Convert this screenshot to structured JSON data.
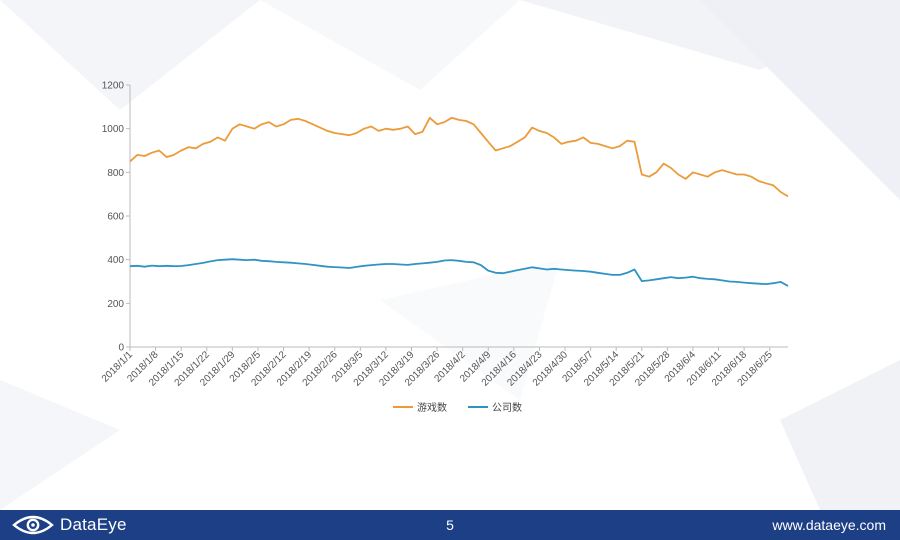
{
  "footer": {
    "brand_name": "DataEye",
    "page_number": "5",
    "website": "www.dataeye.com",
    "bar_color": "#1d3f86"
  },
  "chart_data": {
    "type": "line",
    "title": "",
    "xlabel": "",
    "ylabel": "",
    "ylim": [
      0,
      1200
    ],
    "yticks": [
      0,
      200,
      400,
      600,
      800,
      1000,
      1200
    ],
    "grid": false,
    "legend_position": "bottom",
    "x_start": "2018-01-01",
    "x_end": "2018-06-30",
    "xtick_labels": [
      "2018/1/1",
      "2018/1/8",
      "2018/1/15",
      "2018/1/22",
      "2018/1/29",
      "2018/2/5",
      "2018/2/12",
      "2018/2/19",
      "2018/2/26",
      "2018/3/5",
      "2018/3/12",
      "2018/3/19",
      "2018/3/26",
      "2018/4/2",
      "2018/4/9",
      "2018/4/16",
      "2018/4/23",
      "2018/4/30",
      "2018/5/7",
      "2018/5/14",
      "2018/5/21",
      "2018/5/28",
      "2018/6/4",
      "2018/6/11",
      "2018/6/18",
      "2018/6/25"
    ],
    "series": [
      {
        "name": "游戏数",
        "color": "#ec9b3b",
        "points": [
          [
            "2018-01-01",
            850
          ],
          [
            "2018-01-03",
            880
          ],
          [
            "2018-01-05",
            875
          ],
          [
            "2018-01-07",
            890
          ],
          [
            "2018-01-09",
            900
          ],
          [
            "2018-01-11",
            870
          ],
          [
            "2018-01-13",
            880
          ],
          [
            "2018-01-15",
            900
          ],
          [
            "2018-01-17",
            915
          ],
          [
            "2018-01-19",
            910
          ],
          [
            "2018-01-21",
            930
          ],
          [
            "2018-01-23",
            940
          ],
          [
            "2018-01-25",
            960
          ],
          [
            "2018-01-27",
            945
          ],
          [
            "2018-01-29",
            1000
          ],
          [
            "2018-01-31",
            1020
          ],
          [
            "2018-02-02",
            1010
          ],
          [
            "2018-02-04",
            1000
          ],
          [
            "2018-02-06",
            1020
          ],
          [
            "2018-02-08",
            1030
          ],
          [
            "2018-02-10",
            1010
          ],
          [
            "2018-02-12",
            1020
          ],
          [
            "2018-02-14",
            1040
          ],
          [
            "2018-02-16",
            1045
          ],
          [
            "2018-02-18",
            1035
          ],
          [
            "2018-02-20",
            1020
          ],
          [
            "2018-02-22",
            1005
          ],
          [
            "2018-02-24",
            990
          ],
          [
            "2018-02-26",
            980
          ],
          [
            "2018-02-28",
            975
          ],
          [
            "2018-03-02",
            970
          ],
          [
            "2018-03-04",
            980
          ],
          [
            "2018-03-06",
            1000
          ],
          [
            "2018-03-08",
            1010
          ],
          [
            "2018-03-10",
            990
          ],
          [
            "2018-03-12",
            1000
          ],
          [
            "2018-03-14",
            995
          ],
          [
            "2018-03-16",
            1000
          ],
          [
            "2018-03-18",
            1010
          ],
          [
            "2018-03-20",
            975
          ],
          [
            "2018-03-22",
            985
          ],
          [
            "2018-03-24",
            1050
          ],
          [
            "2018-03-26",
            1020
          ],
          [
            "2018-03-28",
            1030
          ],
          [
            "2018-03-30",
            1050
          ],
          [
            "2018-04-01",
            1040
          ],
          [
            "2018-04-03",
            1035
          ],
          [
            "2018-04-05",
            1020
          ],
          [
            "2018-04-07",
            980
          ],
          [
            "2018-04-09",
            940
          ],
          [
            "2018-04-11",
            900
          ],
          [
            "2018-04-13",
            910
          ],
          [
            "2018-04-15",
            920
          ],
          [
            "2018-04-17",
            940
          ],
          [
            "2018-04-19",
            960
          ],
          [
            "2018-04-21",
            1005
          ],
          [
            "2018-04-23",
            990
          ],
          [
            "2018-04-25",
            980
          ],
          [
            "2018-04-27",
            960
          ],
          [
            "2018-04-29",
            930
          ],
          [
            "2018-05-01",
            940
          ],
          [
            "2018-05-03",
            945
          ],
          [
            "2018-05-05",
            960
          ],
          [
            "2018-05-07",
            935
          ],
          [
            "2018-05-09",
            930
          ],
          [
            "2018-05-11",
            920
          ],
          [
            "2018-05-13",
            910
          ],
          [
            "2018-05-15",
            920
          ],
          [
            "2018-05-17",
            945
          ],
          [
            "2018-05-19",
            940
          ],
          [
            "2018-05-21",
            790
          ],
          [
            "2018-05-23",
            780
          ],
          [
            "2018-05-25",
            800
          ],
          [
            "2018-05-27",
            840
          ],
          [
            "2018-05-29",
            820
          ],
          [
            "2018-05-31",
            790
          ],
          [
            "2018-06-02",
            770
          ],
          [
            "2018-06-04",
            800
          ],
          [
            "2018-06-06",
            790
          ],
          [
            "2018-06-08",
            780
          ],
          [
            "2018-06-10",
            800
          ],
          [
            "2018-06-12",
            810
          ],
          [
            "2018-06-14",
            800
          ],
          [
            "2018-06-16",
            790
          ],
          [
            "2018-06-18",
            790
          ],
          [
            "2018-06-20",
            780
          ],
          [
            "2018-06-22",
            760
          ],
          [
            "2018-06-24",
            750
          ],
          [
            "2018-06-26",
            740
          ],
          [
            "2018-06-28",
            710
          ],
          [
            "2018-06-30",
            690
          ]
        ]
      },
      {
        "name": "公司数",
        "color": "#2f94c4",
        "points": [
          [
            "2018-01-01",
            370
          ],
          [
            "2018-01-03",
            372
          ],
          [
            "2018-01-05",
            368
          ],
          [
            "2018-01-07",
            373
          ],
          [
            "2018-01-09",
            370
          ],
          [
            "2018-01-11",
            372
          ],
          [
            "2018-01-13",
            370
          ],
          [
            "2018-01-15",
            371
          ],
          [
            "2018-01-17",
            375
          ],
          [
            "2018-01-19",
            380
          ],
          [
            "2018-01-21",
            385
          ],
          [
            "2018-01-23",
            392
          ],
          [
            "2018-01-25",
            398
          ],
          [
            "2018-01-27",
            400
          ],
          [
            "2018-01-29",
            402
          ],
          [
            "2018-01-31",
            400
          ],
          [
            "2018-02-02",
            398
          ],
          [
            "2018-02-04",
            400
          ],
          [
            "2018-02-06",
            395
          ],
          [
            "2018-02-08",
            393
          ],
          [
            "2018-02-10",
            390
          ],
          [
            "2018-02-12",
            388
          ],
          [
            "2018-02-14",
            386
          ],
          [
            "2018-02-16",
            383
          ],
          [
            "2018-02-18",
            380
          ],
          [
            "2018-02-20",
            376
          ],
          [
            "2018-02-22",
            372
          ],
          [
            "2018-02-24",
            368
          ],
          [
            "2018-02-26",
            366
          ],
          [
            "2018-02-28",
            364
          ],
          [
            "2018-03-02",
            362
          ],
          [
            "2018-03-04",
            367
          ],
          [
            "2018-03-06",
            372
          ],
          [
            "2018-03-08",
            375
          ],
          [
            "2018-03-10",
            378
          ],
          [
            "2018-03-12",
            380
          ],
          [
            "2018-03-14",
            380
          ],
          [
            "2018-03-16",
            378
          ],
          [
            "2018-03-18",
            376
          ],
          [
            "2018-03-20",
            380
          ],
          [
            "2018-03-22",
            383
          ],
          [
            "2018-03-24",
            386
          ],
          [
            "2018-03-26",
            390
          ],
          [
            "2018-03-28",
            396
          ],
          [
            "2018-03-30",
            398
          ],
          [
            "2018-04-01",
            395
          ],
          [
            "2018-04-03",
            390
          ],
          [
            "2018-04-05",
            388
          ],
          [
            "2018-04-07",
            375
          ],
          [
            "2018-04-09",
            350
          ],
          [
            "2018-04-11",
            340
          ],
          [
            "2018-04-13",
            338
          ],
          [
            "2018-04-15",
            345
          ],
          [
            "2018-04-17",
            352
          ],
          [
            "2018-04-19",
            358
          ],
          [
            "2018-04-21",
            365
          ],
          [
            "2018-04-23",
            360
          ],
          [
            "2018-04-25",
            355
          ],
          [
            "2018-04-27",
            358
          ],
          [
            "2018-04-29",
            355
          ],
          [
            "2018-05-01",
            352
          ],
          [
            "2018-05-03",
            350
          ],
          [
            "2018-05-05",
            348
          ],
          [
            "2018-05-07",
            345
          ],
          [
            "2018-05-09",
            340
          ],
          [
            "2018-05-11",
            335
          ],
          [
            "2018-05-13",
            330
          ],
          [
            "2018-05-15",
            330
          ],
          [
            "2018-05-17",
            340
          ],
          [
            "2018-05-19",
            355
          ],
          [
            "2018-05-21",
            302
          ],
          [
            "2018-05-23",
            305
          ],
          [
            "2018-05-25",
            310
          ],
          [
            "2018-05-27",
            315
          ],
          [
            "2018-05-29",
            320
          ],
          [
            "2018-05-31",
            315
          ],
          [
            "2018-06-02",
            318
          ],
          [
            "2018-06-04",
            322
          ],
          [
            "2018-06-06",
            315
          ],
          [
            "2018-06-08",
            312
          ],
          [
            "2018-06-10",
            310
          ],
          [
            "2018-06-12",
            305
          ],
          [
            "2018-06-14",
            300
          ],
          [
            "2018-06-16",
            298
          ],
          [
            "2018-06-18",
            295
          ],
          [
            "2018-06-20",
            292
          ],
          [
            "2018-06-22",
            290
          ],
          [
            "2018-06-24",
            288
          ],
          [
            "2018-06-26",
            292
          ],
          [
            "2018-06-28",
            298
          ],
          [
            "2018-06-30",
            280
          ]
        ]
      }
    ]
  }
}
